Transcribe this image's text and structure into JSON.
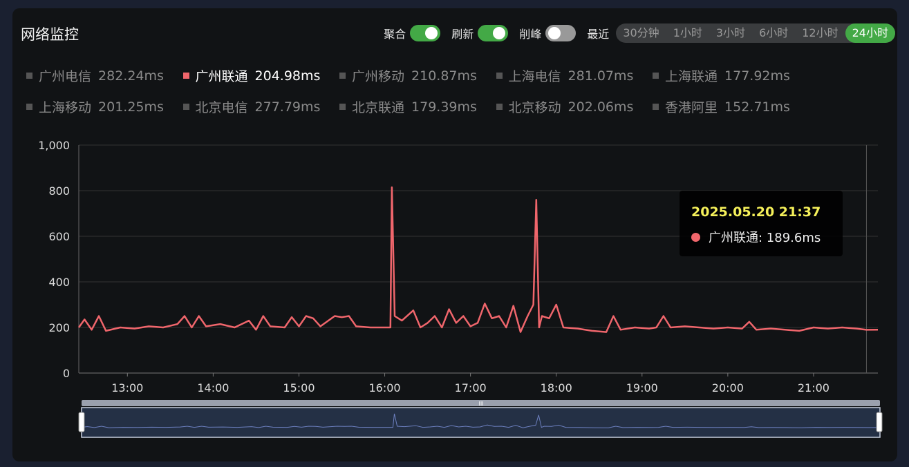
{
  "title": "网络监控",
  "controls": {
    "toggles": [
      {
        "label": "聚合",
        "on": true
      },
      {
        "label": "刷新",
        "on": true
      },
      {
        "label": "削峰",
        "on": false
      }
    ],
    "range_label": "最近",
    "ranges": [
      "30分钟",
      "1小时",
      "3小时",
      "6小时",
      "12小时",
      "24小时"
    ],
    "active_range": "24小时"
  },
  "legend": [
    {
      "name": "广州电信",
      "value": "282.24ms"
    },
    {
      "name": "广州联通",
      "value": "204.98ms",
      "active": true
    },
    {
      "name": "广州移动",
      "value": "210.87ms"
    },
    {
      "name": "上海电信",
      "value": "281.07ms"
    },
    {
      "name": "上海联通",
      "value": "177.92ms"
    },
    {
      "name": "上海移动",
      "value": "201.25ms"
    },
    {
      "name": "北京电信",
      "value": "277.79ms"
    },
    {
      "name": "北京联通",
      "value": "179.39ms"
    },
    {
      "name": "北京移动",
      "value": "202.06ms"
    },
    {
      "name": "香港阿里",
      "value": "152.71ms"
    }
  ],
  "tooltip": {
    "time": "2025.05.20 21:37",
    "label": "广州联通: 189.6ms"
  },
  "colors": {
    "series": "#f0666c",
    "active_toggle": "#43a946",
    "minimap_line": "#6d80c0"
  },
  "chart_data": {
    "type": "line",
    "ylim": [
      0,
      1000
    ],
    "yticks": [
      "0",
      "200",
      "400",
      "600",
      "800",
      "1,000"
    ],
    "xticks": [
      "13:00",
      "14:00",
      "15:00",
      "16:00",
      "17:00",
      "18:00",
      "19:00",
      "20:00",
      "21:00"
    ],
    "xlim": [
      "12:26",
      "21:45"
    ],
    "grid": true,
    "series": [
      {
        "name": "广州联通",
        "points": [
          [
            "12:26",
            200
          ],
          [
            "12:30",
            235
          ],
          [
            "12:35",
            190
          ],
          [
            "12:40",
            250
          ],
          [
            "12:45",
            185
          ],
          [
            "12:55",
            200
          ],
          [
            "13:05",
            195
          ],
          [
            "13:15",
            205
          ],
          [
            "13:25",
            200
          ],
          [
            "13:35",
            215
          ],
          [
            "13:40",
            250
          ],
          [
            "13:45",
            200
          ],
          [
            "13:50",
            250
          ],
          [
            "13:55",
            205
          ],
          [
            "14:05",
            215
          ],
          [
            "14:15",
            200
          ],
          [
            "14:25",
            230
          ],
          [
            "14:30",
            190
          ],
          [
            "14:35",
            250
          ],
          [
            "14:40",
            205
          ],
          [
            "14:50",
            200
          ],
          [
            "14:55",
            245
          ],
          [
            "15:00",
            205
          ],
          [
            "15:05",
            250
          ],
          [
            "15:10",
            240
          ],
          [
            "15:15",
            205
          ],
          [
            "15:25",
            250
          ],
          [
            "15:30",
            245
          ],
          [
            "15:35",
            250
          ],
          [
            "15:40",
            205
          ],
          [
            "15:50",
            200
          ],
          [
            "16:04",
            200
          ],
          [
            "16:05",
            815
          ],
          [
            "16:07",
            250
          ],
          [
            "16:12",
            230
          ],
          [
            "16:20",
            275
          ],
          [
            "16:25",
            200
          ],
          [
            "16:30",
            220
          ],
          [
            "16:35",
            250
          ],
          [
            "16:40",
            200
          ],
          [
            "16:45",
            280
          ],
          [
            "16:50",
            220
          ],
          [
            "16:55",
            250
          ],
          [
            "17:00",
            205
          ],
          [
            "17:05",
            220
          ],
          [
            "17:10",
            305
          ],
          [
            "17:15",
            240
          ],
          [
            "17:20",
            250
          ],
          [
            "17:25",
            200
          ],
          [
            "17:30",
            295
          ],
          [
            "17:35",
            180
          ],
          [
            "17:40",
            250
          ],
          [
            "17:44",
            300
          ],
          [
            "17:46",
            760
          ],
          [
            "17:48",
            200
          ],
          [
            "17:50",
            250
          ],
          [
            "17:55",
            240
          ],
          [
            "18:00",
            300
          ],
          [
            "18:05",
            200
          ],
          [
            "18:15",
            195
          ],
          [
            "18:25",
            185
          ],
          [
            "18:35",
            180
          ],
          [
            "18:40",
            250
          ],
          [
            "18:45",
            190
          ],
          [
            "18:55",
            200
          ],
          [
            "19:05",
            195
          ],
          [
            "19:10",
            200
          ],
          [
            "19:15",
            250
          ],
          [
            "19:20",
            200
          ],
          [
            "19:30",
            205
          ],
          [
            "19:40",
            200
          ],
          [
            "19:50",
            195
          ],
          [
            "20:00",
            200
          ],
          [
            "20:10",
            195
          ],
          [
            "20:15",
            225
          ],
          [
            "20:20",
            190
          ],
          [
            "20:30",
            195
          ],
          [
            "20:40",
            190
          ],
          [
            "20:50",
            185
          ],
          [
            "21:00",
            200
          ],
          [
            "21:10",
            195
          ],
          [
            "21:20",
            200
          ],
          [
            "21:30",
            195
          ],
          [
            "21:37",
            189.6
          ],
          [
            "21:45",
            190
          ]
        ]
      }
    ]
  }
}
